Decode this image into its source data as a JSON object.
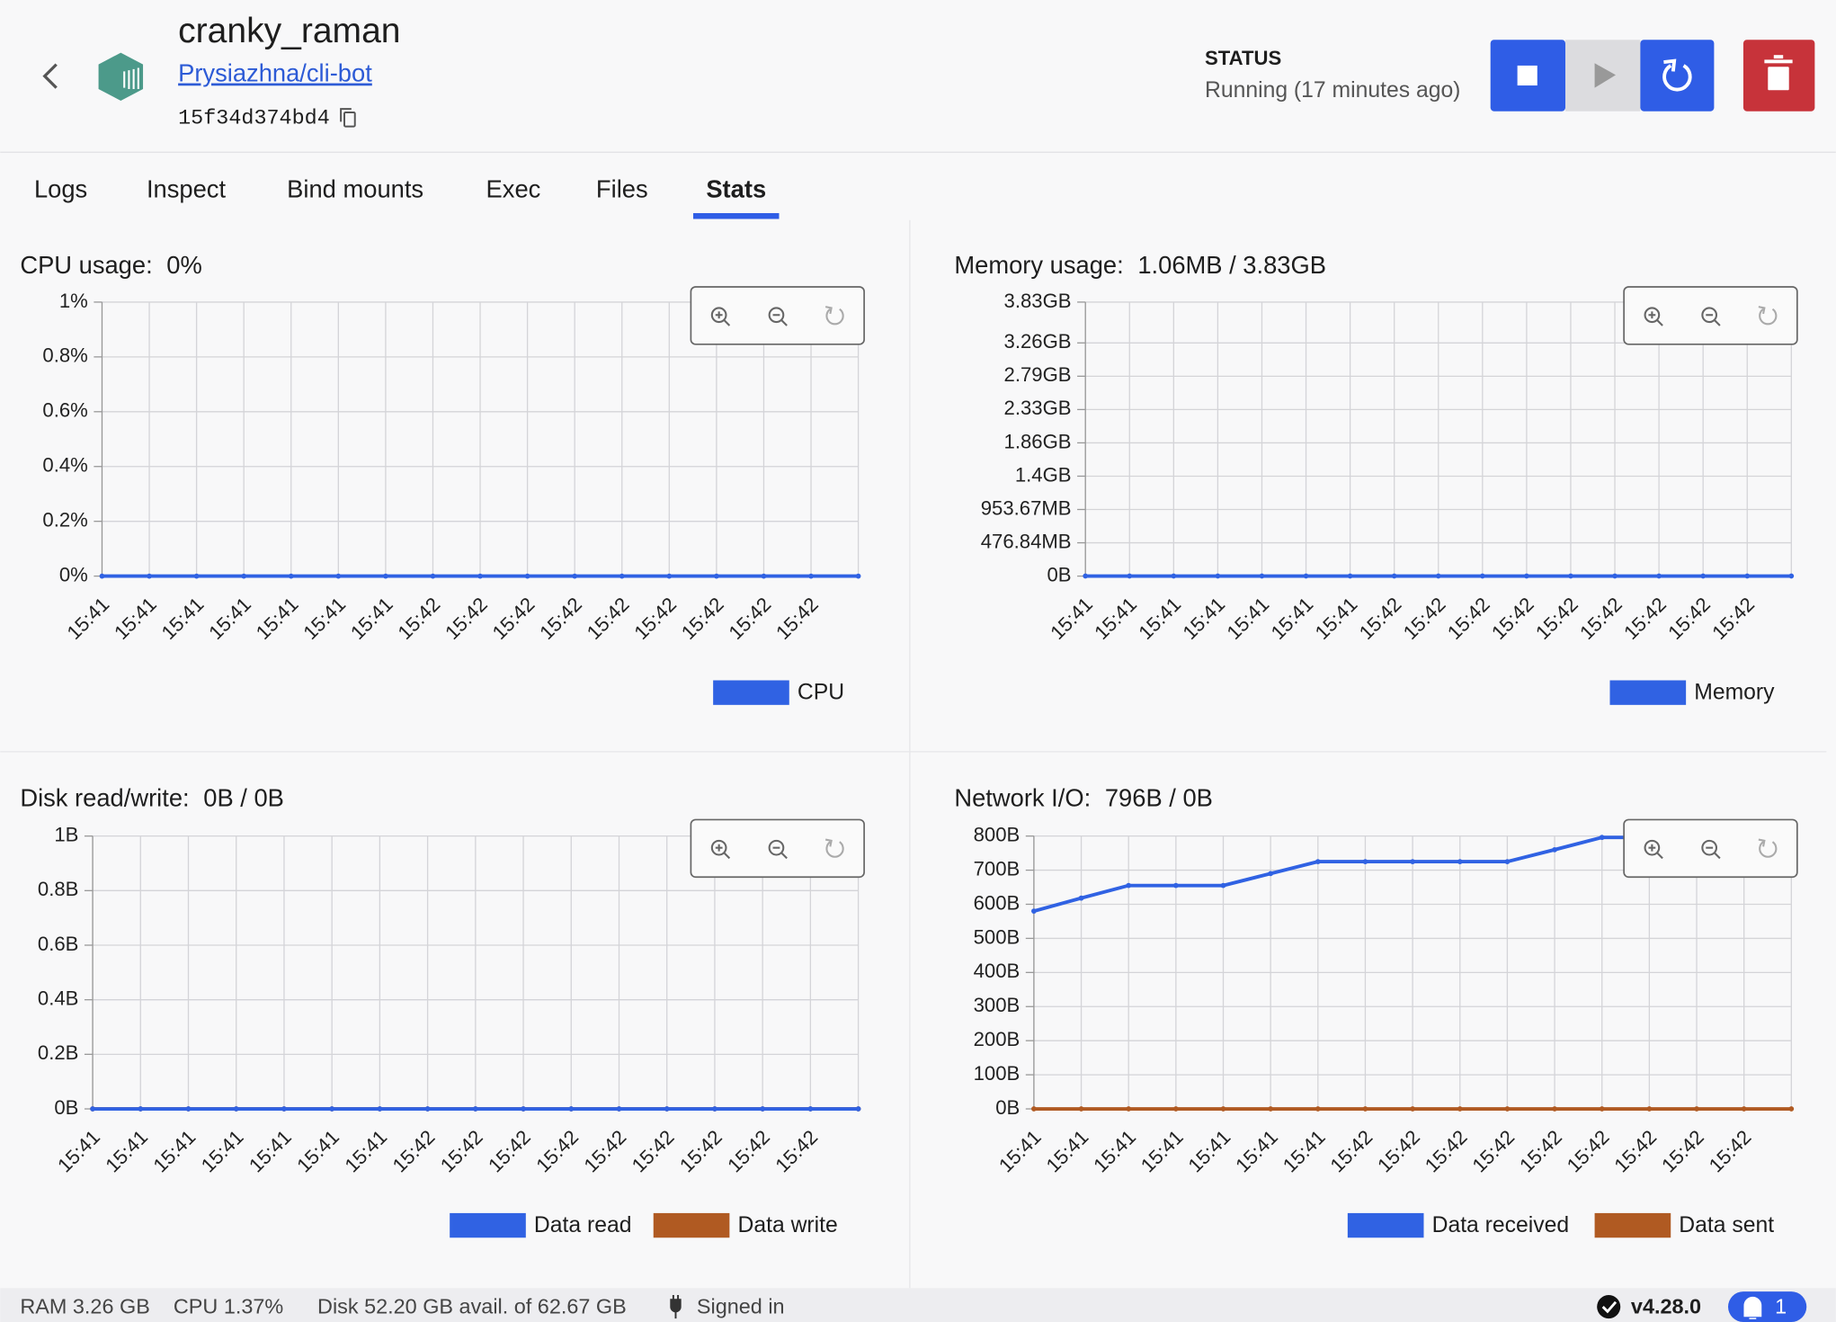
{
  "header": {
    "title": "cranky_raman",
    "repository": "Prysiazhna/cli-bot",
    "container_id": "15f34d374bd4",
    "status_label": "STATUS",
    "status": "Running (17 minutes ago)"
  },
  "tabs": [
    "Logs",
    "Inspect",
    "Bind mounts",
    "Exec",
    "Files",
    "Stats"
  ],
  "active_tab": 5,
  "chart_data": [
    {
      "type": "line",
      "title": "CPU usage:",
      "current": "0%",
      "categories": [
        "15:41",
        "15:41",
        "15:41",
        "15:41",
        "15:41",
        "15:41",
        "15:41",
        "15:42",
        "15:42",
        "15:42",
        "15:42",
        "15:42",
        "15:42",
        "15:42",
        "15:42",
        "15:42",
        null
      ],
      "series": [
        {
          "name": "CPU",
          "color": "#3062e3",
          "values": [
            0,
            0,
            0,
            0,
            0,
            0,
            0,
            0,
            0,
            0,
            0,
            0,
            0,
            0,
            0,
            0,
            0
          ]
        }
      ],
      "ylim": [
        0,
        1
      ],
      "yticks": [
        {
          "value": 0,
          "label": "0%"
        },
        {
          "value": 0.2,
          "label": "0.2%"
        },
        {
          "value": 0.4,
          "label": "0.4%"
        },
        {
          "value": 0.6,
          "label": "0.6%"
        },
        {
          "value": 0.8,
          "label": "0.8%"
        },
        {
          "value": 1,
          "label": "1%"
        }
      ],
      "grid": true
    },
    {
      "type": "line",
      "title": "Memory usage:",
      "current": "1.06MB / 3.83GB",
      "categories": [
        "15:41",
        "15:41",
        "15:41",
        "15:41",
        "15:41",
        "15:41",
        "15:41",
        "15:42",
        "15:42",
        "15:42",
        "15:42",
        "15:42",
        "15:42",
        "15:42",
        "15:42",
        "15:42",
        null
      ],
      "series": [
        {
          "name": "Memory",
          "color": "#3062e3",
          "values": [
            1.06,
            1.06,
            1.06,
            1.06,
            1.06,
            1.06,
            1.06,
            1.06,
            1.06,
            1.06,
            1.06,
            1.06,
            1.06,
            1.06,
            1.06,
            1.06,
            1.06
          ]
        }
      ],
      "ylim": [
        0,
        3921.92
      ],
      "yticks": [
        {
          "value": 0,
          "label": "0B"
        },
        {
          "value": 476.84,
          "label": "476.84MB"
        },
        {
          "value": 953.67,
          "label": "953.67MB"
        },
        {
          "value": 1430.51,
          "label": "1.4GB"
        },
        {
          "value": 1907.35,
          "label": "1.86GB"
        },
        {
          "value": 2384.19,
          "label": "2.33GB"
        },
        {
          "value": 2861.02,
          "label": "2.79GB"
        },
        {
          "value": 3337.86,
          "label": "3.26GB"
        },
        {
          "value": 3921.92,
          "label": "3.83GB"
        }
      ],
      "grid": true
    },
    {
      "type": "line",
      "title": "Disk read/write:",
      "current": "0B / 0B",
      "categories": [
        "15:41",
        "15:41",
        "15:41",
        "15:41",
        "15:41",
        "15:41",
        "15:41",
        "15:42",
        "15:42",
        "15:42",
        "15:42",
        "15:42",
        "15:42",
        "15:42",
        "15:42",
        "15:42",
        null
      ],
      "series": [
        {
          "name": "Data read",
          "color": "#3062e3",
          "values": [
            0,
            0,
            0,
            0,
            0,
            0,
            0,
            0,
            0,
            0,
            0,
            0,
            0,
            0,
            0,
            0,
            0
          ]
        },
        {
          "name": "Data write",
          "color": "#b05a22",
          "values": [
            0,
            0,
            0,
            0,
            0,
            0,
            0,
            0,
            0,
            0,
            0,
            0,
            0,
            0,
            0,
            0,
            0
          ]
        }
      ],
      "ylim": [
        0,
        1
      ],
      "yticks": [
        {
          "value": 0,
          "label": "0B"
        },
        {
          "value": 0.2,
          "label": "0.2B"
        },
        {
          "value": 0.4,
          "label": "0.4B"
        },
        {
          "value": 0.6,
          "label": "0.6B"
        },
        {
          "value": 0.8,
          "label": "0.8B"
        },
        {
          "value": 1,
          "label": "1B"
        }
      ],
      "grid": true
    },
    {
      "type": "line",
      "title": "Network I/O:",
      "current": "796B / 0B",
      "categories": [
        "15:41",
        "15:41",
        "15:41",
        "15:41",
        "15:41",
        "15:41",
        "15:41",
        "15:42",
        "15:42",
        "15:42",
        "15:42",
        "15:42",
        "15:42",
        "15:42",
        "15:42",
        "15:42",
        null
      ],
      "series": [
        {
          "name": "Data received",
          "color": "#3062e3",
          "values": [
            580,
            618,
            655,
            655,
            655,
            690,
            725,
            725,
            725,
            725,
            725,
            760,
            796,
            796,
            796,
            796,
            796
          ]
        },
        {
          "name": "Data sent",
          "color": "#b05a22",
          "values": [
            0,
            0,
            0,
            0,
            0,
            0,
            0,
            0,
            0,
            0,
            0,
            0,
            0,
            0,
            0,
            0,
            0
          ]
        }
      ],
      "ylim": [
        0,
        800
      ],
      "yticks": [
        {
          "value": 0,
          "label": "0B"
        },
        {
          "value": 100,
          "label": "100B"
        },
        {
          "value": 200,
          "label": "200B"
        },
        {
          "value": 300,
          "label": "300B"
        },
        {
          "value": 400,
          "label": "400B"
        },
        {
          "value": 500,
          "label": "500B"
        },
        {
          "value": 600,
          "label": "600B"
        },
        {
          "value": 700,
          "label": "700B"
        },
        {
          "value": 800,
          "label": "800B"
        }
      ],
      "grid": true
    }
  ],
  "footer": {
    "ram": "RAM 3.26 GB",
    "cpu": "CPU 1.37%",
    "disk": "Disk 52.20 GB avail. of 62.67 GB",
    "signin": "Signed in",
    "version": "v4.28.0",
    "notifications": "1"
  }
}
